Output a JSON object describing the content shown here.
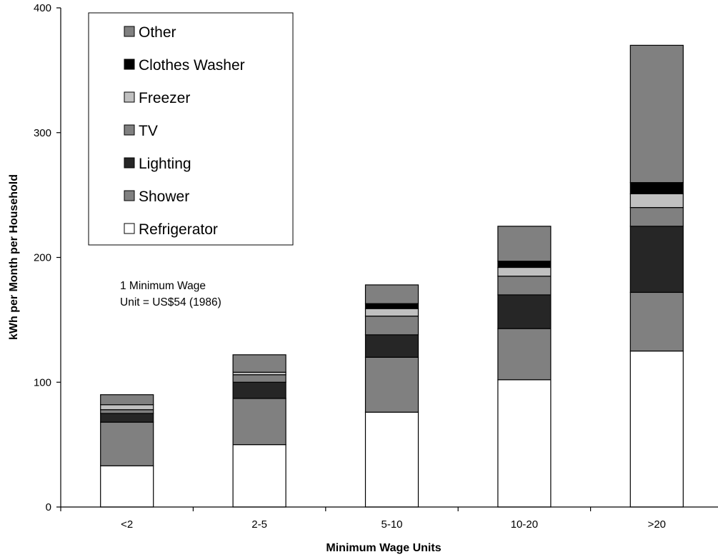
{
  "chart_data": {
    "type": "bar",
    "stacked": true,
    "categories": [
      "<2",
      "2-5",
      "5-10",
      "10-20",
      ">20"
    ],
    "series": [
      {
        "name": "Refrigerator",
        "color": "#ffffff",
        "values": [
          33,
          50,
          76,
          102,
          125
        ]
      },
      {
        "name": "Shower",
        "color": "#808080",
        "values": [
          35,
          37,
          44,
          41,
          47
        ]
      },
      {
        "name": "Lighting",
        "color": "#262626",
        "values": [
          7,
          13,
          18,
          27,
          53
        ]
      },
      {
        "name": "TV",
        "color": "#808080",
        "values": [
          3,
          6,
          15,
          15,
          15
        ]
      },
      {
        "name": "Freezer",
        "color": "#c0c0c0",
        "values": [
          4,
          2,
          6,
          7,
          11
        ]
      },
      {
        "name": "Clothes Washer",
        "color": "#000000",
        "values": [
          0,
          0,
          4,
          5,
          9
        ]
      },
      {
        "name": "Other",
        "color": "#808080",
        "values": [
          8,
          14,
          15,
          28,
          110
        ]
      }
    ],
    "xlabel": "Minimum Wage Units",
    "ylabel": "kWh per Month per Household",
    "ylim": [
      0,
      400
    ],
    "yticks": [
      "0",
      "100",
      "200",
      "300",
      "400"
    ],
    "legend_order": [
      "Other",
      "Clothes Washer",
      "Freezer",
      "TV",
      "Lighting",
      "Shower",
      "Refrigerator"
    ],
    "legend_position": "top-left",
    "grid": false,
    "annotation": [
      "1 Minimum Wage",
      "Unit = US$54 (1986)"
    ]
  }
}
